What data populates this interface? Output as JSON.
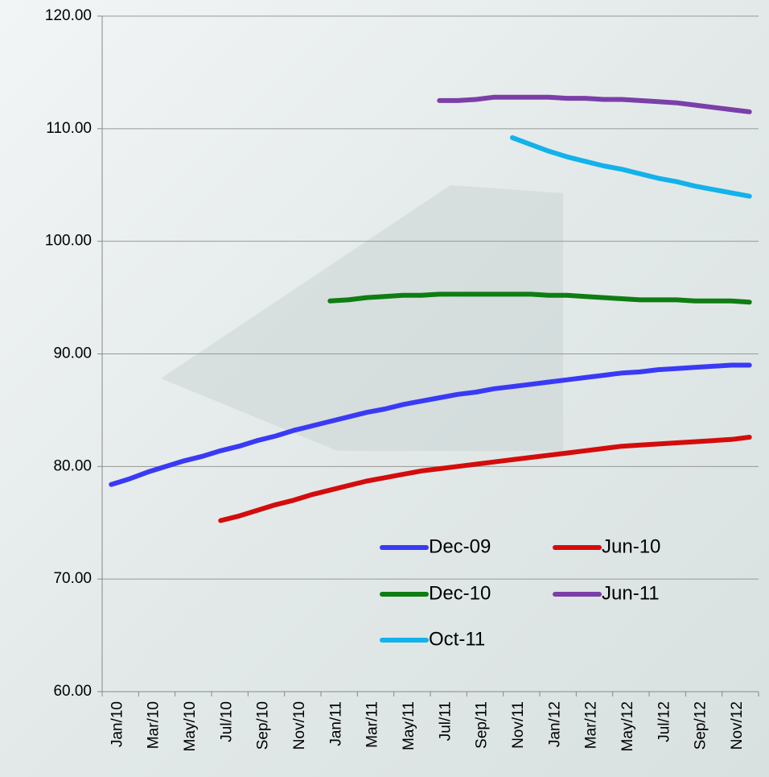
{
  "chart_data": {
    "type": "line",
    "categories": [
      "Jan/10",
      null,
      "Mar/10",
      null,
      "May/10",
      null,
      "Jul/10",
      null,
      "Sep/10",
      null,
      "Nov/10",
      null,
      "Jan/11",
      null,
      "Mar/11",
      null,
      "May/11",
      null,
      "Jul/11",
      null,
      "Sep/11",
      null,
      "Nov/11",
      null,
      "Jan/12",
      null,
      "Mar/12",
      null,
      "May/12",
      null,
      "Jul/12",
      null,
      "Sep/12",
      null,
      "Nov/12",
      null
    ],
    "ylim": [
      60,
      120
    ],
    "yticks": [
      {
        "value": 60,
        "label": "60.00"
      },
      {
        "value": 70,
        "label": "70.00"
      },
      {
        "value": 80,
        "label": "80.00"
      },
      {
        "value": 90,
        "label": "90.00"
      },
      {
        "value": 100,
        "label": "100.00"
      },
      {
        "value": 110,
        "label": "110.00"
      },
      {
        "value": 120,
        "label": "120.00"
      }
    ],
    "grid": true,
    "series": [
      {
        "name": "Dec-09",
        "color": "#3a3af5",
        "values": [
          78.4,
          78.9,
          79.5,
          80.0,
          80.5,
          80.9,
          81.4,
          81.8,
          82.3,
          82.7,
          83.2,
          83.6,
          84.0,
          84.4,
          84.8,
          85.1,
          85.5,
          85.8,
          86.1,
          86.4,
          86.6,
          86.9,
          87.1,
          87.3,
          87.5,
          87.7,
          87.9,
          88.1,
          88.3,
          88.4,
          88.6,
          88.7,
          88.8,
          88.9,
          89.0,
          89.0
        ]
      },
      {
        "name": "Jun-10",
        "color": "#d40c0c",
        "values": [
          null,
          null,
          null,
          null,
          null,
          null,
          75.2,
          75.6,
          76.1,
          76.6,
          77.0,
          77.5,
          77.9,
          78.3,
          78.7,
          79.0,
          79.3,
          79.6,
          79.8,
          80.0,
          80.2,
          80.4,
          80.6,
          80.8,
          81.0,
          81.2,
          81.4,
          81.6,
          81.8,
          81.9,
          82.0,
          82.1,
          82.2,
          82.3,
          82.4,
          82.6
        ]
      },
      {
        "name": "Dec-10",
        "color": "#0f7d12",
        "values": [
          null,
          null,
          null,
          null,
          null,
          null,
          null,
          null,
          null,
          null,
          null,
          null,
          94.7,
          94.8,
          95.0,
          95.1,
          95.2,
          95.2,
          95.3,
          95.3,
          95.3,
          95.3,
          95.3,
          95.3,
          95.2,
          95.2,
          95.1,
          95.0,
          94.9,
          94.8,
          94.8,
          94.8,
          94.7,
          94.7,
          94.7,
          94.6
        ]
      },
      {
        "name": "Jun-11",
        "color": "#7b3fa8",
        "values": [
          null,
          null,
          null,
          null,
          null,
          null,
          null,
          null,
          null,
          null,
          null,
          null,
          null,
          null,
          null,
          null,
          null,
          null,
          112.5,
          112.5,
          112.6,
          112.8,
          112.8,
          112.8,
          112.8,
          112.7,
          112.7,
          112.6,
          112.6,
          112.5,
          112.4,
          112.3,
          112.1,
          111.9,
          111.7,
          111.5
        ]
      },
      {
        "name": "Oct-11",
        "color": "#12b2ea",
        "values": [
          null,
          null,
          null,
          null,
          null,
          null,
          null,
          null,
          null,
          null,
          null,
          null,
          null,
          null,
          null,
          null,
          null,
          null,
          null,
          null,
          null,
          null,
          109.2,
          108.6,
          108.0,
          107.5,
          107.1,
          106.7,
          106.4,
          106.0,
          105.6,
          105.3,
          104.9,
          104.6,
          104.3,
          104.0
        ]
      }
    ]
  }
}
